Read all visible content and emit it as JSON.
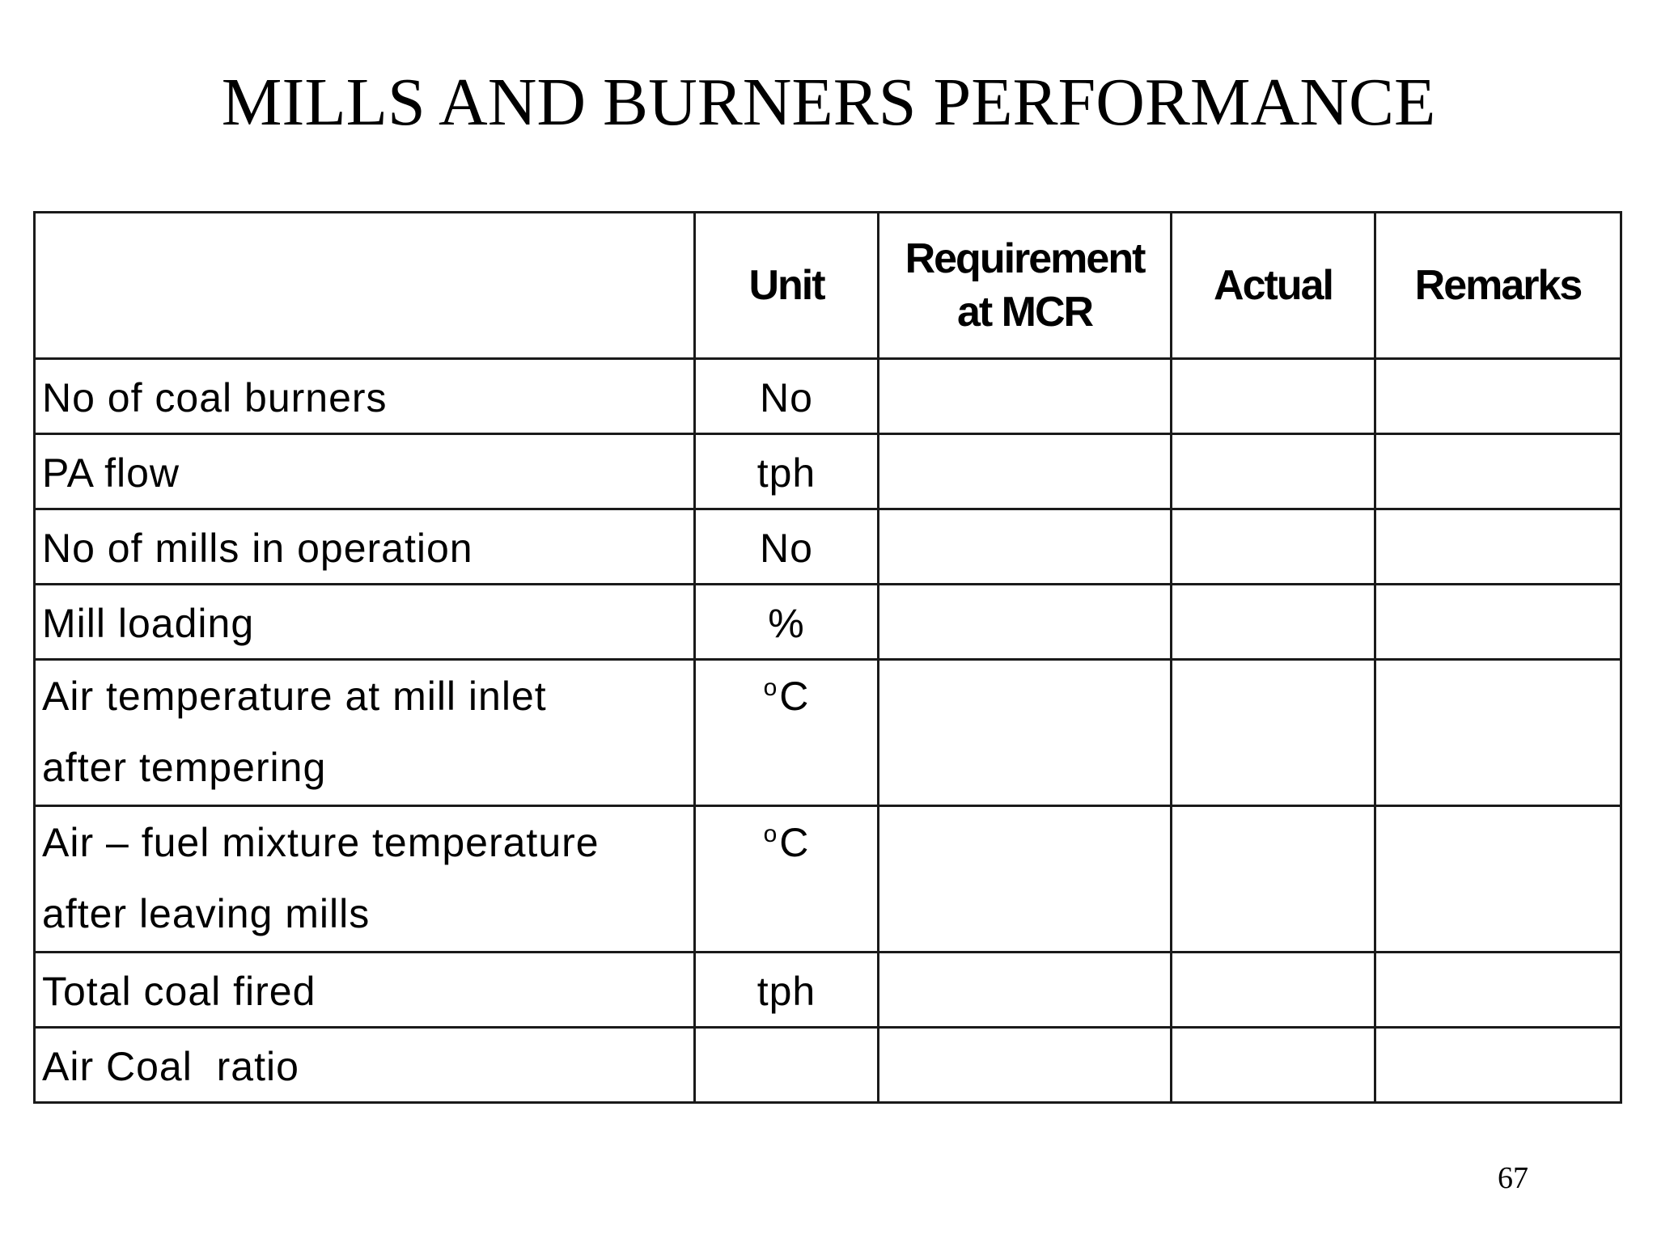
{
  "title": "MILLS AND BURNERS  PERFORMANCE",
  "table": {
    "headers": {
      "parameter": "",
      "unit": "Unit",
      "requirement_line1": "Requirement",
      "requirement_line2": "at MCR",
      "actual": "Actual",
      "remarks": "Remarks"
    },
    "rows": [
      {
        "parameter": "No of coal burners",
        "unit": "No",
        "requirement": "",
        "actual": "",
        "remarks": ""
      },
      {
        "parameter": "PA flow",
        "unit": "tph",
        "requirement": "",
        "actual": "",
        "remarks": ""
      },
      {
        "parameter": "No of mills in operation",
        "unit": "No",
        "requirement": "",
        "actual": "",
        "remarks": ""
      },
      {
        "parameter": "Mill loading",
        "unit": "%",
        "requirement": "",
        "actual": "",
        "remarks": ""
      },
      {
        "parameter_line1": "Air temperature at mill inlet",
        "parameter_line2": "after tempering",
        "unit_sup": "o",
        "unit": "C",
        "requirement": "",
        "actual": "",
        "remarks": ""
      },
      {
        "parameter_line1": "Air – fuel mixture temperature",
        "parameter_line2": "after leaving mills",
        "unit_sup": "o",
        "unit": "C",
        "requirement": "",
        "actual": "",
        "remarks": ""
      },
      {
        "parameter": "Total coal fired",
        "unit": "tph",
        "requirement": "",
        "actual": "",
        "remarks": ""
      },
      {
        "parameter": "Air Coal  ratio",
        "unit": "",
        "requirement": "",
        "actual": "",
        "remarks": ""
      }
    ]
  },
  "page_number": "67"
}
